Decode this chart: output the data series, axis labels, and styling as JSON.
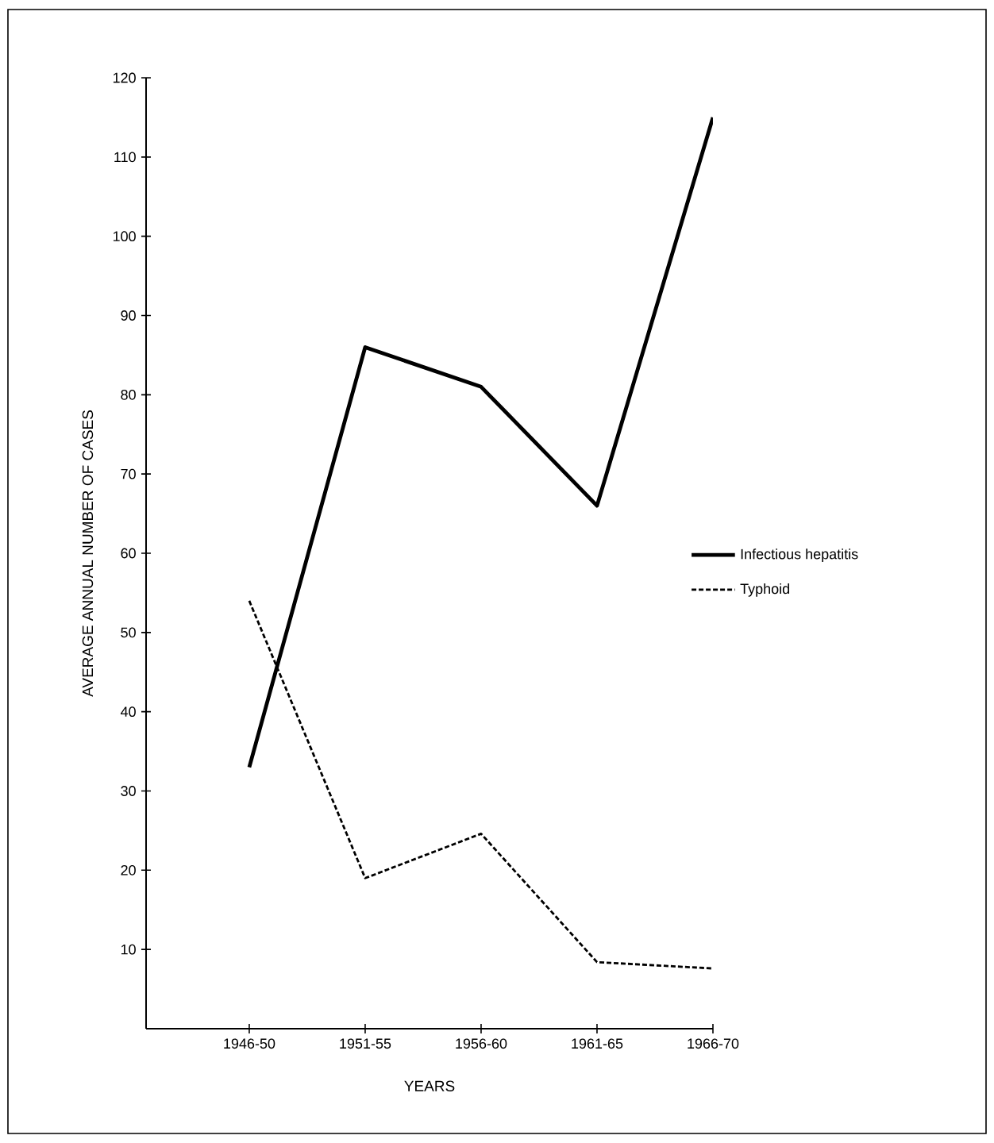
{
  "chart_data": {
    "type": "line",
    "xlabel": "YEARS",
    "ylabel": "AVERAGE ANNUAL NUMBER OF CASES",
    "categories": [
      "1946-50",
      "1951-55",
      "1956-60",
      "1961-65",
      "1966-70"
    ],
    "ylim": [
      0,
      120
    ],
    "yticks": [
      10,
      20,
      30,
      40,
      50,
      60,
      70,
      80,
      90,
      100,
      110,
      120
    ],
    "legend": "right",
    "grid": false,
    "marker": "none",
    "series": [
      {
        "name": "Infectious hepatitis",
        "color": "#000000",
        "line_style": "solid",
        "values": [
          33,
          86,
          81,
          66,
          115
        ]
      },
      {
        "name": "Typhoid",
        "color": "#000000",
        "line_style": "dashed",
        "values": [
          54,
          19,
          24.6,
          8.4,
          7.6
        ]
      }
    ]
  }
}
